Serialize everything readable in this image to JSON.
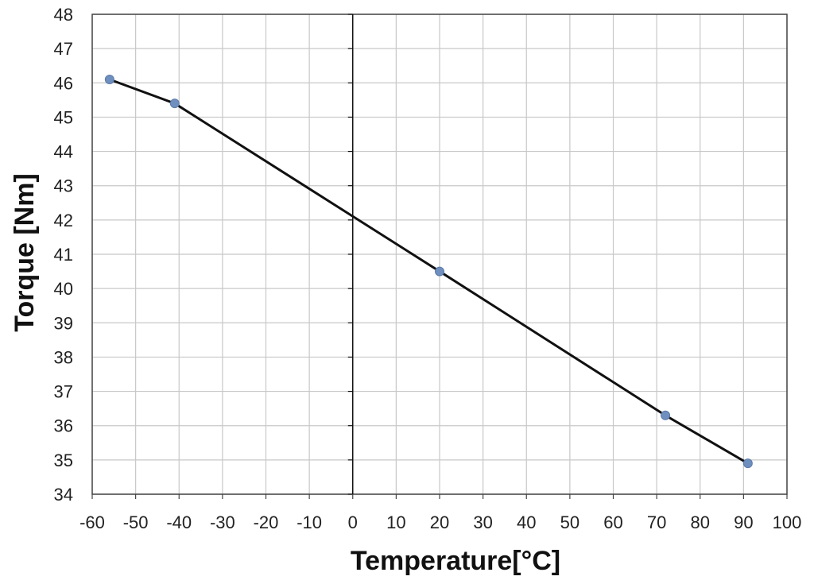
{
  "chart_data": {
    "type": "line",
    "title": "",
    "xlabel": "Temperature[°C]",
    "ylabel": "Torque [Nm]",
    "xlim": [
      -60,
      100
    ],
    "ylim": [
      34,
      48
    ],
    "x_ticks": [
      -60,
      -50,
      -40,
      -30,
      -20,
      -10,
      0,
      10,
      20,
      30,
      40,
      50,
      60,
      70,
      80,
      90,
      100
    ],
    "y_ticks": [
      34,
      35,
      36,
      37,
      38,
      39,
      40,
      41,
      42,
      43,
      44,
      45,
      46,
      47,
      48
    ],
    "grid": true,
    "legend": "none",
    "series": [
      {
        "x": [
          -56,
          -41,
          20,
          72,
          91
        ],
        "y": [
          46.1,
          45.4,
          40.5,
          36.3,
          34.9
        ],
        "line_color": "#111111",
        "marker_color": "#6f8fbf"
      }
    ]
  }
}
